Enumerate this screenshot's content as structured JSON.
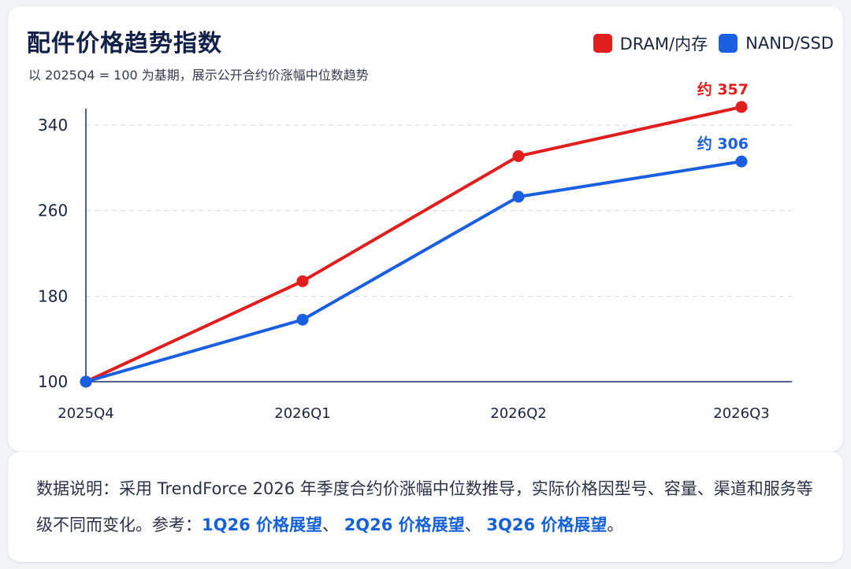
{
  "header": {
    "title": "配件价格趋势指数",
    "subtitle": "以 2025Q4 = 100 为基期，展示公开合约价涨幅中位数趋势"
  },
  "legend": [
    {
      "label": "DRAM/内存",
      "color": "#e01e1e"
    },
    {
      "label": "NAND/SSD",
      "color": "#1a5fe0"
    }
  ],
  "chart_data": {
    "type": "line",
    "x": [
      "2025Q4",
      "2026Q1",
      "2026Q2",
      "2026Q3"
    ],
    "series": [
      {
        "name": "DRAM/内存",
        "color": "#e01e1e",
        "values": [
          100,
          194,
          311,
          357
        ],
        "end_label": "约 357"
      },
      {
        "name": "NAND/SSD",
        "color": "#1a5fe0",
        "values": [
          100,
          158,
          273,
          306
        ],
        "end_label": "约 306"
      }
    ],
    "yticks": [
      100,
      180,
      260,
      340
    ],
    "ylim": [
      100,
      357
    ],
    "grid": true,
    "legend_position": "top-right"
  },
  "note": {
    "prefix": "数据说明：采用 TrendForce 2026 年季度合约价涨幅中位数推导，实际价格因型号、容量、渠道和服务等级不同而变化。参考：",
    "links": [
      "1Q26 价格展望",
      "2Q26 价格展望",
      "3Q26 价格展望"
    ],
    "separator": "、",
    "suffix": "。"
  }
}
